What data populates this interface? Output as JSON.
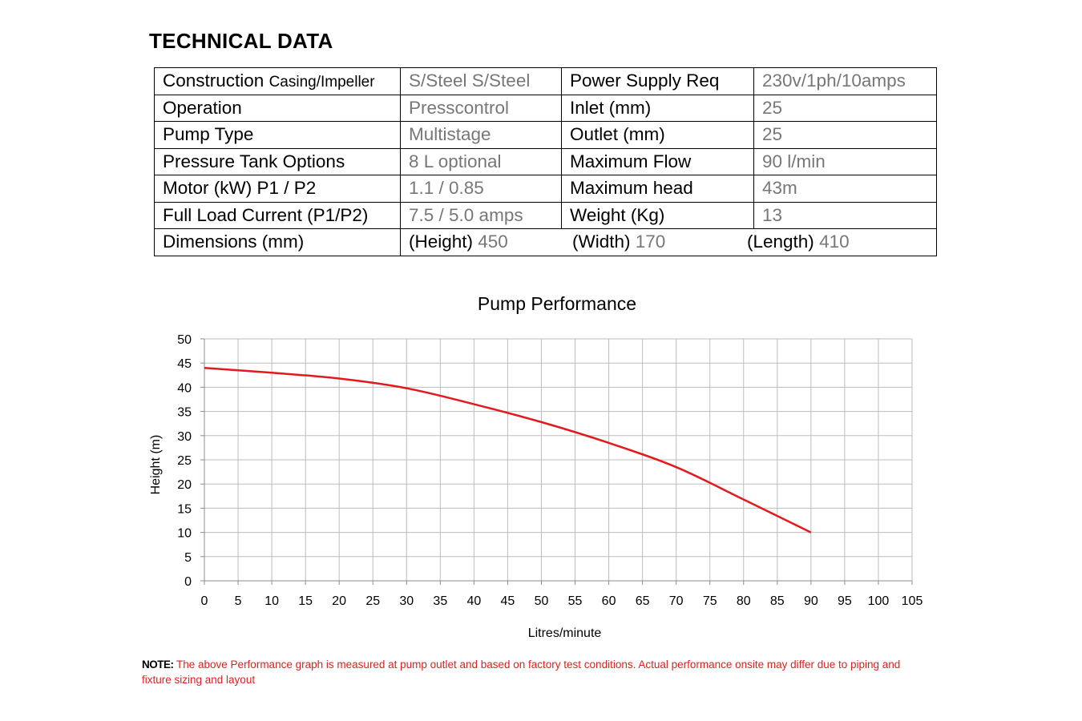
{
  "heading": "TECHNICAL DATA",
  "specs": {
    "rows": [
      {
        "label": "Construction ",
        "label_small": "Casing/Impeller",
        "value": "S/Steel S/Steel",
        "label2": "Power Supply Req",
        "value2": "230v/1ph/10amps"
      },
      {
        "label": "Operation",
        "label_small": "",
        "value": "Presscontrol",
        "label2": "Inlet (mm)",
        "value2": "25"
      },
      {
        "label": "Pump Type",
        "label_small": "",
        "value": "Multistage",
        "label2": "Outlet (mm)",
        "value2": "25"
      },
      {
        "label": "Pressure Tank Options",
        "label_small": "",
        "value": "8 L optional",
        "label2": "Maximum Flow",
        "value2": "90 l/min"
      },
      {
        "label": "Motor  (kW) P1 / P2",
        "label_small": "",
        "value": "1.1 / 0.85",
        "label2": "Maximum head",
        "value2": "43m"
      },
      {
        "label": "Full Load Current (P1/P2)",
        "label_small": "",
        "value": "7.5 / 5.0 amps",
        "label2": "Weight (Kg)",
        "value2": "13"
      }
    ],
    "dimensions": {
      "label": "Dimensions (mm)",
      "height_label": "(Height) ",
      "height": "450",
      "width_label": "(Width) ",
      "width": "170",
      "length_label": "(Length) ",
      "length": "410"
    }
  },
  "chart_data": {
    "type": "line",
    "title": "Pump Performance",
    "xlabel": "Litres/minute",
    "ylabel": "Height (m)",
    "xlim": [
      0,
      105
    ],
    "ylim": [
      0,
      50
    ],
    "xticks": [
      0,
      5,
      10,
      15,
      20,
      25,
      30,
      35,
      40,
      45,
      50,
      55,
      60,
      65,
      70,
      75,
      80,
      85,
      90,
      95,
      100,
      105
    ],
    "yticks": [
      0,
      5,
      10,
      15,
      20,
      25,
      30,
      35,
      40,
      45,
      50
    ],
    "grid": true,
    "series": [
      {
        "color": "#e31a1c",
        "x": [
          0,
          10,
          20,
          30,
          40,
          50,
          60,
          70,
          80,
          90
        ],
        "y": [
          44,
          43,
          41.8,
          39.8,
          36.5,
          32.8,
          28.5,
          23.5,
          16.8,
          10
        ]
      }
    ]
  },
  "note": {
    "prefix": "NOTE:",
    "text": " The above Performance graph is measured at pump outlet and based on factory test conditions. Actual performance onsite may differ due to piping and fixture sizing and layout"
  }
}
